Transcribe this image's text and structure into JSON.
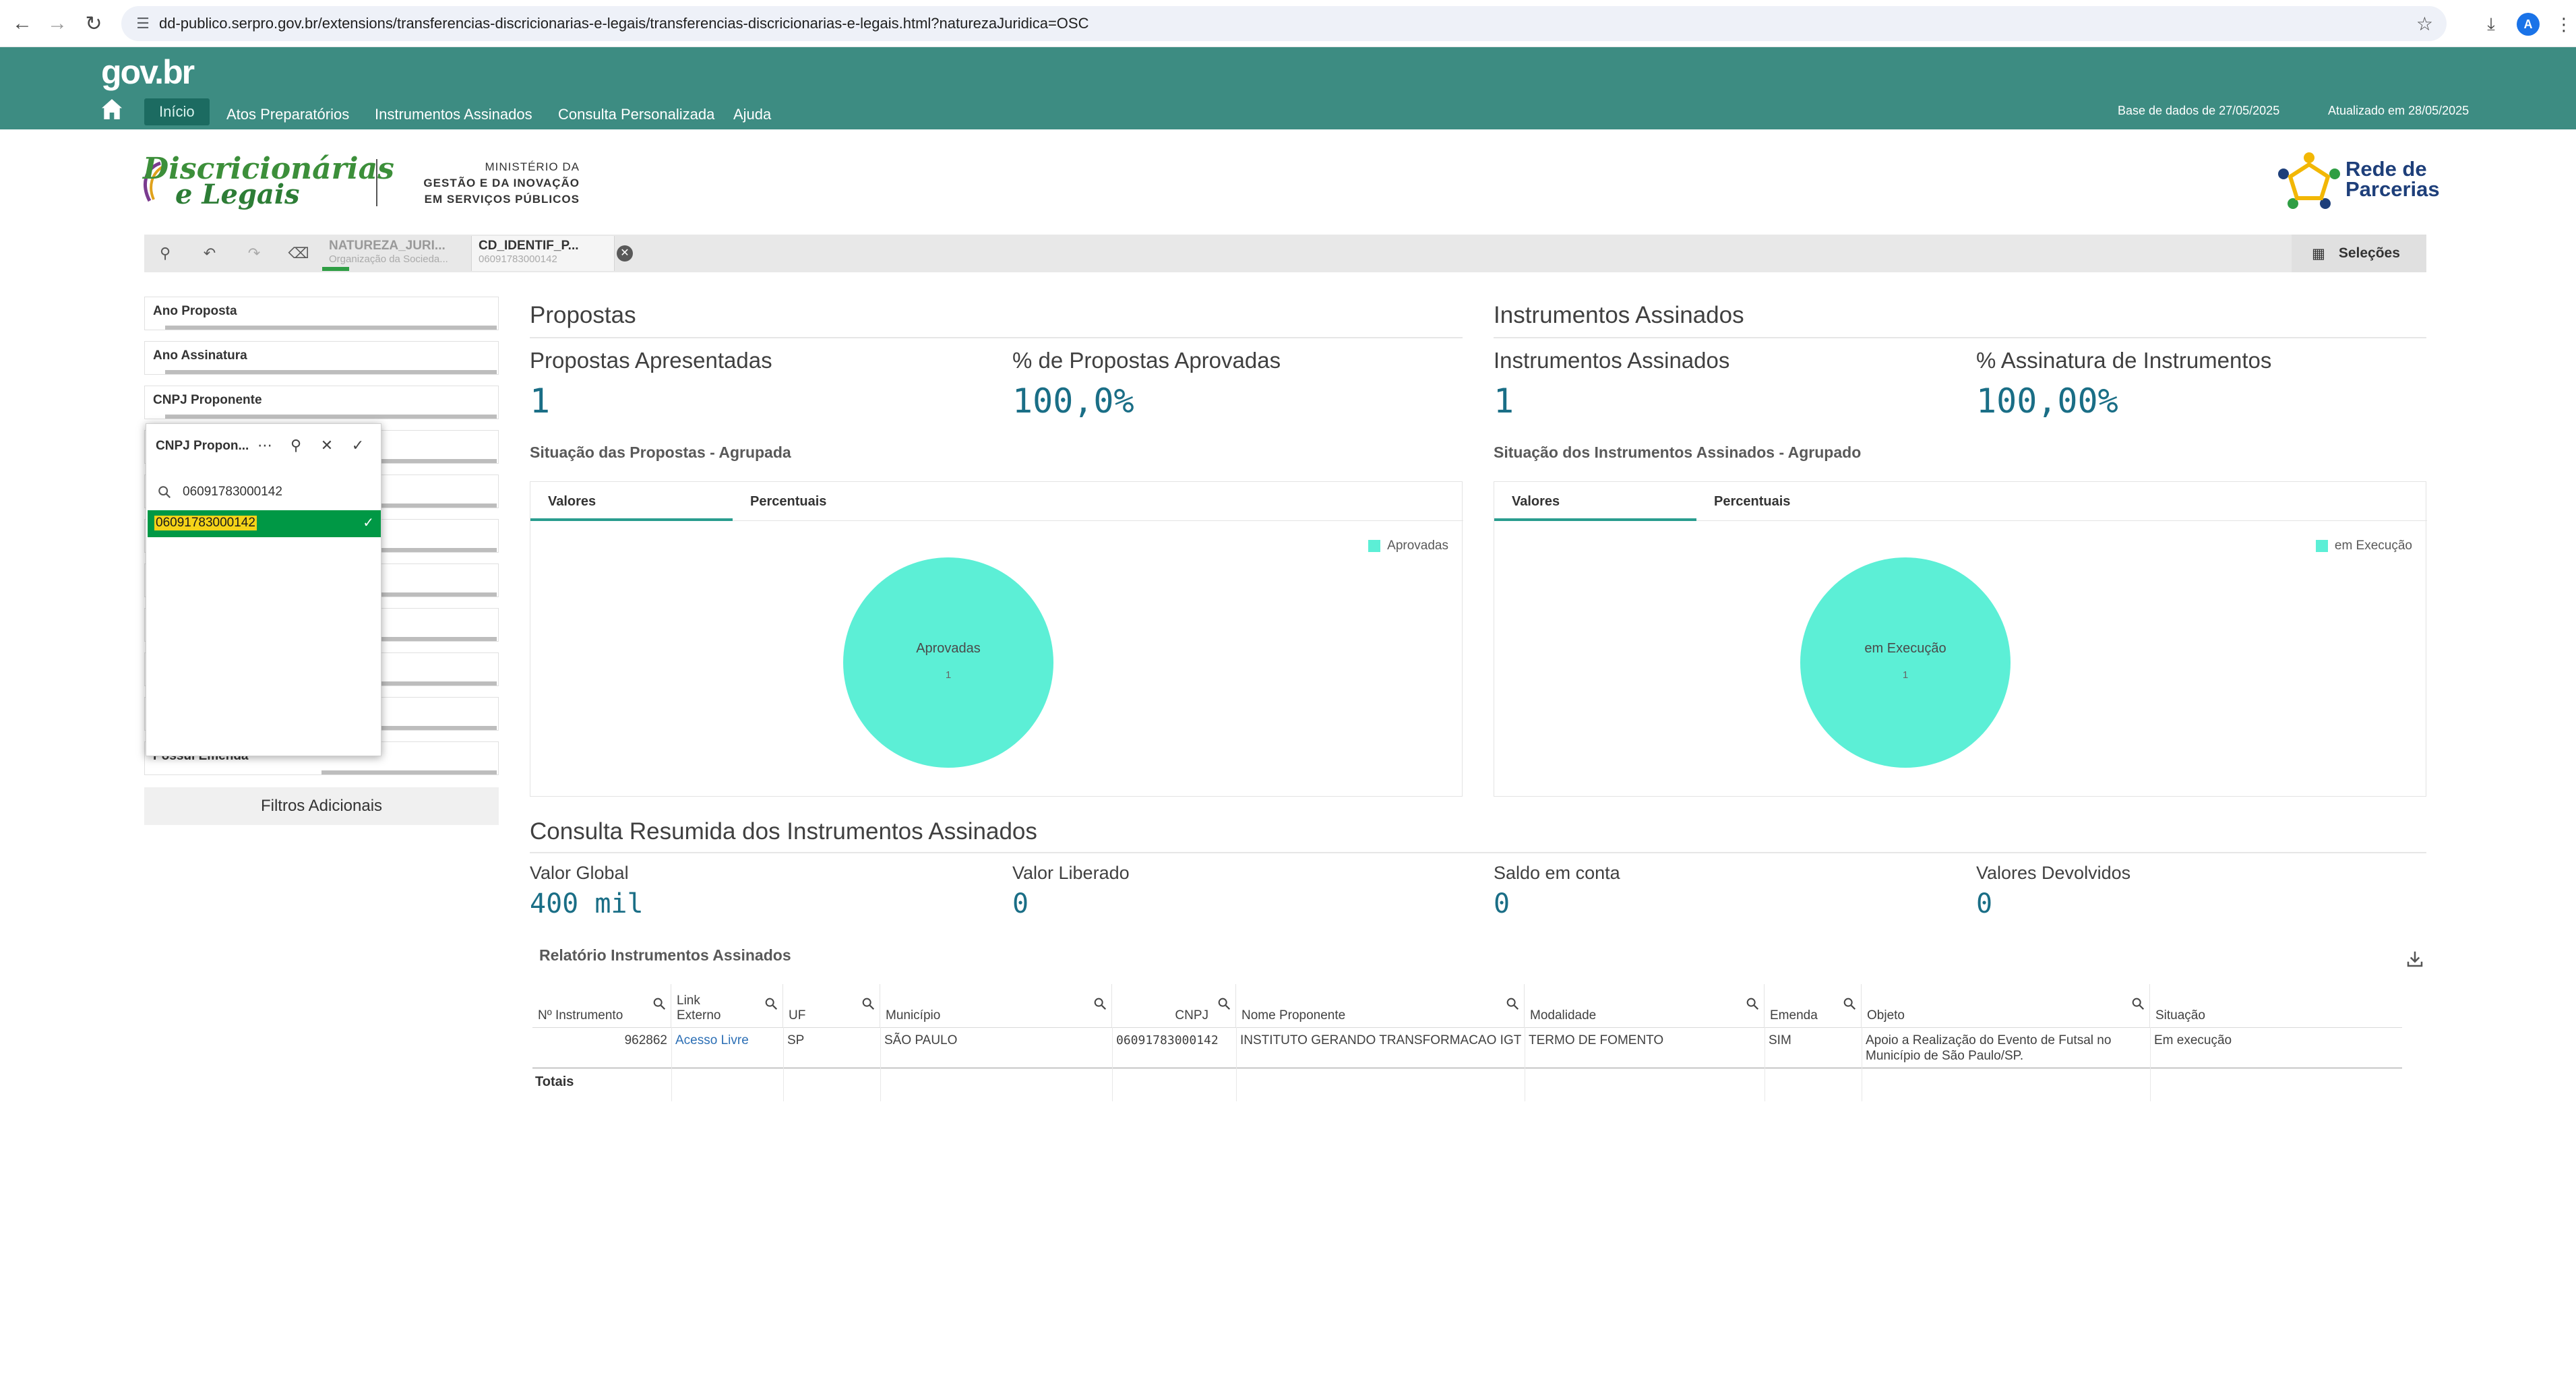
{
  "browser": {
    "url": "dd-publico.serpro.gov.br/extensions/transferencias-discricionarias-e-legais/transferencias-discricionarias-e-legais.html?naturezaJuridica=OSC",
    "profile_initial": "A"
  },
  "header": {
    "logo": "gov.br",
    "menu": [
      "Início",
      "Atos Preparatórios",
      "Instrumentos Assinados",
      "Consulta Personalizada",
      "Ajuda"
    ],
    "base_dados": "Base de dados de 27/05/2025",
    "atualizado": "Atualizado em 28/05/2025"
  },
  "brand": {
    "title_line1": "Discricionárias",
    "title_line2": "e Legais",
    "ministry_line1": "MINISTÉRIO DA",
    "ministry_line2": "GESTÃO E DA INOVAÇÃO",
    "ministry_line3": "EM SERVIÇOS PÚBLICOS",
    "partner_line1": "Rede de",
    "partner_line2": "Parcerias"
  },
  "selection_bar": {
    "chips": [
      {
        "title": "NATUREZA_JURI...",
        "value": "Organização da Socieda..."
      },
      {
        "title": "CD_IDENTIF_P...",
        "value": "06091783000142"
      }
    ],
    "selecoes_label": "Seleções"
  },
  "filters": {
    "items": [
      "Ano Proposta",
      "Ano Assinatura",
      "CNPJ Proponente",
      "Possui Emenda"
    ],
    "filtros_adicionais": "Filtros Adicionais"
  },
  "listbox": {
    "title": "CNPJ Propon...",
    "search_value": "06091783000142",
    "selected_value": "06091783000142"
  },
  "propostas": {
    "section_title": "Propostas",
    "kpi1_label": "Propostas Apresentadas",
    "kpi1_value": "1",
    "kpi2_label": "% de Propostas Aprovadas",
    "kpi2_value": "100,0%",
    "chart_title": "Situação das Propostas - Agrupada",
    "tabs": [
      "Valores",
      "Percentuais"
    ]
  },
  "instrumentos": {
    "section_title": "Instrumentos Assinados",
    "kpi1_label": "Instrumentos Assinados",
    "kpi1_value": "1",
    "kpi2_label": "% Assinatura de Instrumentos",
    "kpi2_value": "100,00%",
    "chart_title": "Situação dos Instrumentos Assinados - Agrupado",
    "tabs": [
      "Valores",
      "Percentuais"
    ]
  },
  "chart_data": [
    {
      "type": "pie",
      "title": "Situação das Propostas - Agrupada",
      "categories": [
        "Aprovadas"
      ],
      "values": [
        1
      ],
      "legend": "top-right",
      "colors": [
        "#5cefd6"
      ]
    },
    {
      "type": "pie",
      "title": "Situação dos Instrumentos Assinados - Agrupado",
      "categories": [
        "em Execução"
      ],
      "values": [
        1
      ],
      "legend": "top-right",
      "colors": [
        "#5cefd6"
      ]
    }
  ],
  "consulta": {
    "section_title": "Consulta Resumida dos Instrumentos Assinados",
    "kpis": [
      {
        "label": "Valor Global",
        "value": "400 mil"
      },
      {
        "label": "Valor Liberado",
        "value": "0"
      },
      {
        "label": "Saldo em conta",
        "value": "0"
      },
      {
        "label": "Valores Devolvidos",
        "value": "0"
      }
    ]
  },
  "report": {
    "title": "Relatório Instrumentos Assinados",
    "columns": [
      "Nº Instrumento",
      "Link Externo",
      "UF",
      "Município",
      "CNPJ",
      "Nome Proponente",
      "Modalidade",
      "Emenda",
      "Objeto",
      "Situação"
    ],
    "rows": [
      {
        "numero": "962862",
        "link": "Acesso Livre",
        "uf": "SP",
        "municipio": "SÃO PAULO",
        "cnpj": "06091783000142",
        "proponente": "INSTITUTO GERANDO TRANSFORMACAO IGT",
        "modalidade": "TERMO DE FOMENTO",
        "emenda": "SIM",
        "objeto": "Apoio a Realização do Evento de Futsal no Município de São Paulo/SP.",
        "situacao": "Em execução"
      }
    ],
    "totals_label": "Totais"
  },
  "colors": {
    "header_bg": "#3d8c82",
    "kpi_value": "#1a6e86",
    "pie_fill": "#5cefd6",
    "selected_green": "#009845"
  }
}
